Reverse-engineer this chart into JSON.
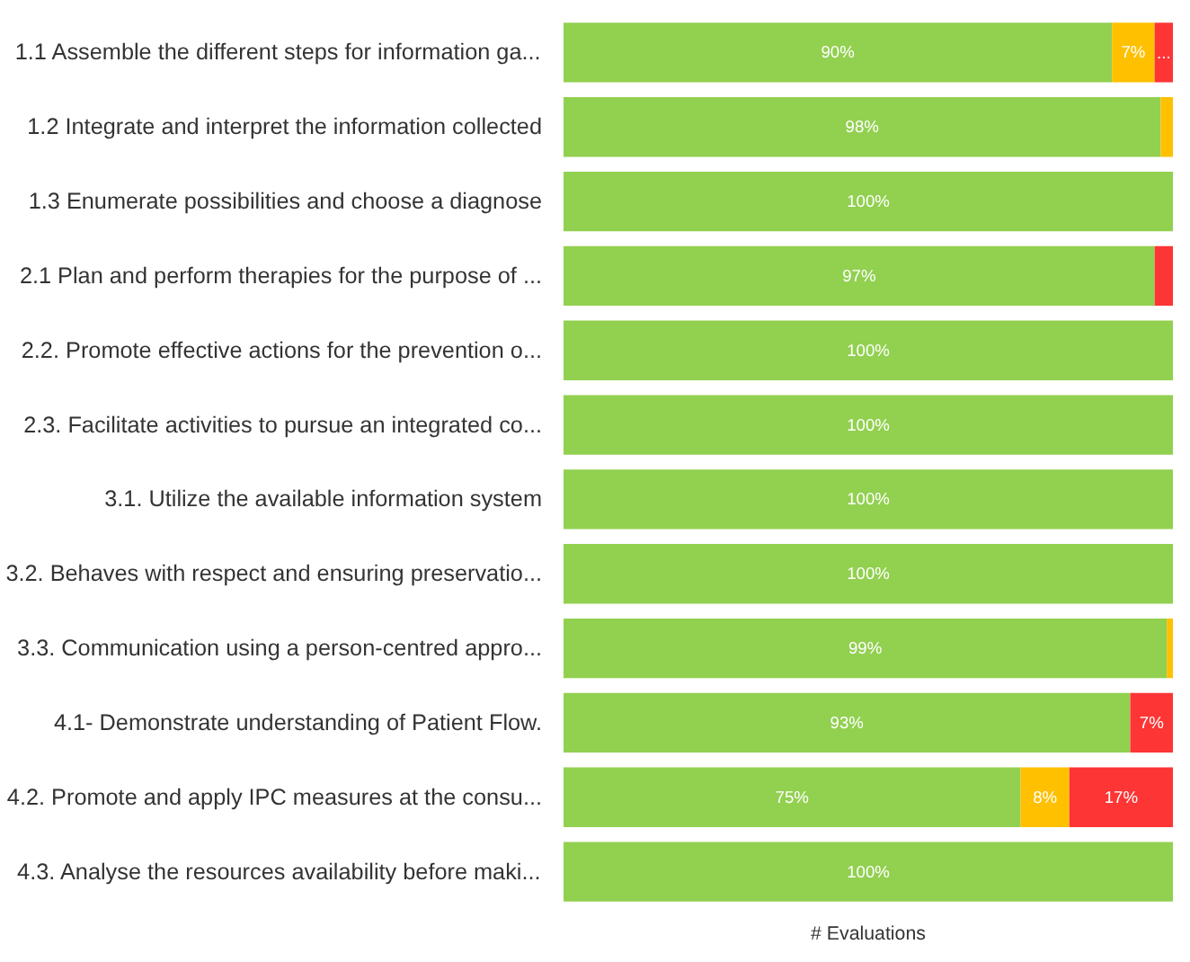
{
  "chart_data": {
    "type": "bar",
    "orientation": "horizontal",
    "stacked": true,
    "xlabel": "# Evaluations",
    "grid": false,
    "tick_labels": "y",
    "categories": [
      "1.1 Assemble the different steps for information ga...",
      "1.2 Integrate and interpret the information collected",
      "1.3 Enumerate possibilities and choose a diagnose",
      "2.1 Plan and perform therapies for the purpose of ...",
      "2.2. Promote effective actions for the prevention o...",
      "2.3. Facilitate activities to pursue an integrated co...",
      "3.1. Utilize the available information system",
      "3.2. Behaves with respect and ensuring preservatio...",
      "3.3. Communication using a person-centred appro...",
      "4.1- Demonstrate understanding of Patient Flow.",
      "4.2. Promote and apply IPC measures at the consu...",
      "4.3. Analyse the resources availability before maki..."
    ],
    "series": [
      {
        "color": "#92d050",
        "values": [
          90,
          98,
          100,
          97,
          100,
          100,
          100,
          100,
          99,
          93,
          75,
          100
        ],
        "value_labels": [
          "90%",
          "98%",
          "100%",
          "97%",
          "100%",
          "100%",
          "100%",
          "100%",
          "99%",
          "93%",
          "75%",
          "100%"
        ]
      },
      {
        "color": "#ffc000",
        "values": [
          7,
          2,
          0,
          0,
          0,
          0,
          0,
          0,
          1,
          0,
          8,
          0
        ],
        "value_labels": [
          "7%",
          null,
          null,
          null,
          null,
          null,
          null,
          null,
          null,
          null,
          "8%",
          null
        ]
      },
      {
        "color": "#fd3535",
        "values": [
          3,
          0,
          0,
          3,
          0,
          0,
          0,
          0,
          0,
          7,
          17,
          0
        ],
        "value_labels": [
          "...",
          null,
          null,
          null,
          null,
          null,
          null,
          null,
          null,
          "7%",
          "17%",
          null
        ]
      }
    ]
  }
}
